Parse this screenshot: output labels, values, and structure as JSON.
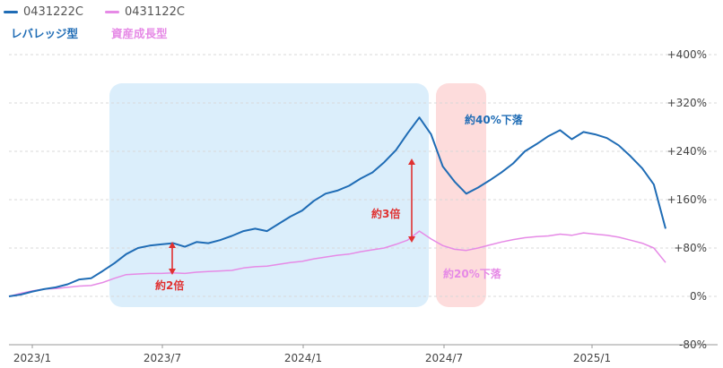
{
  "legend": [
    {
      "code": "0431222C",
      "name": "レバレッジ型",
      "color": "#1f6cb5"
    },
    {
      "code": "0431122C",
      "name": "資産成長型",
      "color": "#e68ae6"
    }
  ],
  "chart_data": {
    "type": "line",
    "x_ticks": [
      "2023/1",
      "2023/7",
      "2024/1",
      "2024/7",
      "2025/1"
    ],
    "y_ticks": [
      "+400%",
      "+320%",
      "+240%",
      "+160%",
      "+80%",
      "0%",
      "-80%"
    ],
    "ylim": [
      -80,
      400
    ],
    "x_range": [
      0,
      28
    ],
    "grid": true,
    "series": [
      {
        "name": "0431222C",
        "color": "#1f6cb5",
        "x": [
          0,
          0.5,
          1,
          1.5,
          2,
          2.5,
          3,
          3.5,
          4,
          4.5,
          5,
          5.5,
          6,
          6.5,
          7,
          7.5,
          8,
          8.5,
          9,
          9.5,
          10,
          10.5,
          11,
          11.5,
          12,
          12.5,
          13,
          13.5,
          14,
          14.5,
          15,
          15.5,
          16,
          16.5,
          17,
          17.5,
          18,
          18.5,
          19,
          19.5,
          20,
          20.5,
          21,
          21.5,
          22,
          22.5,
          23,
          23.5,
          24,
          24.5,
          25,
          25.5,
          26,
          26.5,
          27,
          27.5,
          28
        ],
        "values": [
          0,
          3,
          8,
          12,
          15,
          20,
          28,
          30,
          42,
          55,
          70,
          80,
          84,
          86,
          88,
          82,
          90,
          88,
          93,
          100,
          108,
          112,
          108,
          120,
          132,
          142,
          158,
          170,
          175,
          183,
          195,
          205,
          222,
          242,
          270,
          296,
          268,
          215,
          190,
          170,
          180,
          192,
          205,
          220,
          240,
          252,
          265,
          275,
          260,
          272,
          268,
          262,
          250,
          232,
          212,
          185,
          112
        ]
      },
      {
        "name": "0431122C",
        "color": "#e68ae6",
        "x": [
          0,
          0.5,
          1,
          1.5,
          2,
          2.5,
          3,
          3.5,
          4,
          4.5,
          5,
          5.5,
          6,
          6.5,
          7,
          7.5,
          8,
          8.5,
          9,
          9.5,
          10,
          10.5,
          11,
          11.5,
          12,
          12.5,
          13,
          13.5,
          14,
          14.5,
          15,
          15.5,
          16,
          16.5,
          17,
          17.5,
          18,
          18.5,
          19,
          19.5,
          20,
          20.5,
          21,
          21.5,
          22,
          22.5,
          23,
          23.5,
          24,
          24.5,
          25,
          25.5,
          26,
          26.5,
          27,
          27.5,
          28
        ],
        "values": [
          0,
          5,
          9,
          12,
          13,
          15,
          17,
          18,
          23,
          30,
          36,
          37,
          38,
          38,
          39,
          38,
          40,
          41,
          42,
          43,
          47,
          49,
          50,
          53,
          56,
          58,
          62,
          65,
          68,
          70,
          74,
          77,
          80,
          86,
          93,
          108,
          95,
          84,
          78,
          76,
          80,
          85,
          90,
          94,
          97,
          99,
          100,
          103,
          101,
          105,
          103,
          101,
          98,
          93,
          88,
          80,
          56
        ]
      }
    ],
    "annotations": [
      {
        "text": "約2倍",
        "color": "#e03131"
      },
      {
        "text": "約3倍",
        "color": "#e03131"
      },
      {
        "text": "約40%下落",
        "color": "#1f6cb5"
      },
      {
        "text": "約20%下落",
        "color": "#e68ae6"
      }
    ]
  }
}
